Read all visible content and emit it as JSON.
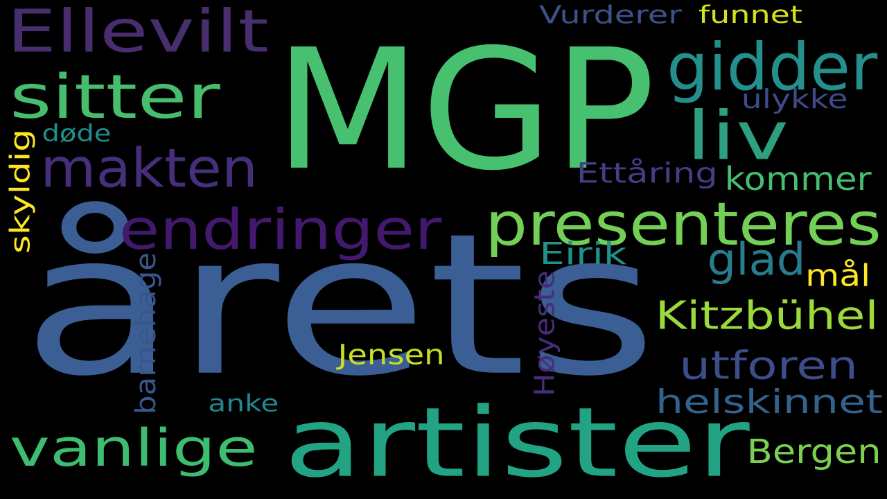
{
  "background_color": "#000000",
  "words": [
    {
      "text": "årets",
      "color": "#3b5e94"
    },
    {
      "text": "MGP",
      "color": "#47c06f"
    },
    {
      "text": "artister",
      "color": "#22a384"
    },
    {
      "text": "presenteres",
      "color": "#73cf55"
    },
    {
      "text": "endringer",
      "color": "#43196d"
    },
    {
      "text": "Ellevilt",
      "color": "#482e6e"
    },
    {
      "text": "makten",
      "color": "#472e7c"
    },
    {
      "text": "sitter",
      "color": "#46be6e"
    },
    {
      "text": "gidder",
      "color": "#24908d"
    },
    {
      "text": "vanlige",
      "color": "#3ebd70"
    },
    {
      "text": "liv",
      "color": "#2e9f80"
    },
    {
      "text": "Kitzbühel",
      "color": "#9cd93b"
    },
    {
      "text": "utforen",
      "color": "#3d4d8a"
    },
    {
      "text": "helskinnet",
      "color": "#33638d"
    },
    {
      "text": "kommer",
      "color": "#45bd72"
    },
    {
      "text": "Bergen",
      "color": "#7ad151"
    },
    {
      "text": "glad",
      "color": "#297b8e"
    },
    {
      "text": "funnet",
      "color": "#d2e21b"
    },
    {
      "text": "Vurderer",
      "color": "#3b528b"
    },
    {
      "text": "ulykke",
      "color": "#3e4a89"
    },
    {
      "text": "Ettåring",
      "color": "#433e85"
    },
    {
      "text": "mål",
      "color": "#fde725"
    },
    {
      "text": "Jensen",
      "color": "#c8e020"
    },
    {
      "text": "Eirik",
      "color": "#20928c"
    },
    {
      "text": "døde",
      "color": "#1f8f8e"
    },
    {
      "text": "anke",
      "color": "#23888e"
    },
    {
      "text": "skyldig",
      "color": "#fde725"
    },
    {
      "text": "barnehage",
      "color": "#39568c"
    },
    {
      "text": "Høyeste",
      "color": "#472c7a"
    }
  ]
}
